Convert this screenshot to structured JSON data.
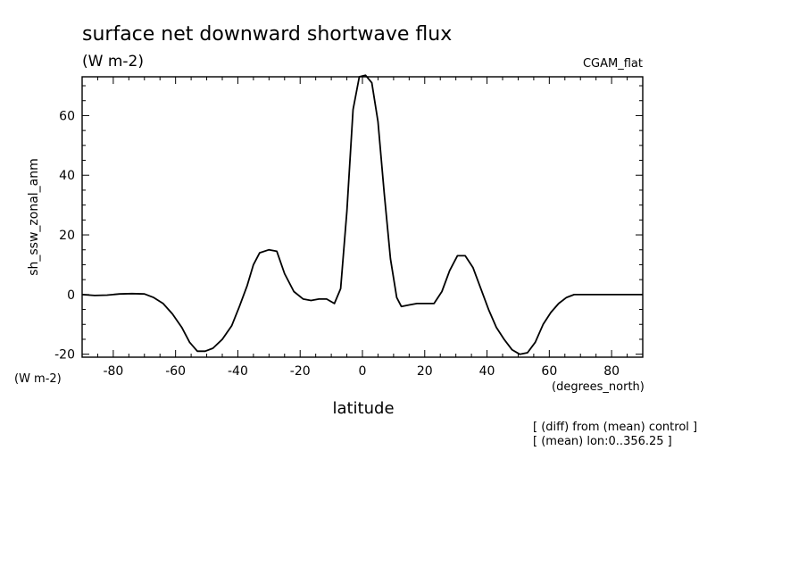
{
  "chart_data": {
    "type": "line",
    "title": "surface net downward shortwave flux",
    "units": "(W m-2)",
    "model": "CGAM_flat",
    "ylabel": "sh_ssw_zonal_anm",
    "yunits": "(W m-2)",
    "xlabel": "latitude",
    "xunits": "(degrees_north)",
    "notes": [
      "[ (diff) from (mean) control ]",
      "[ (mean) lon:0..356.25 ]"
    ],
    "xlim": [
      -90,
      90
    ],
    "ylim": [
      -21,
      73
    ],
    "xticks": [
      -80,
      -60,
      -40,
      -20,
      0,
      20,
      40,
      60,
      80
    ],
    "yticks": [
      -20,
      0,
      20,
      40,
      60
    ],
    "grid": false,
    "series": [
      {
        "x": [
          -90,
          -86,
          -82,
          -78,
          -74,
          -70,
          -67,
          -64,
          -61,
          -58,
          -55.5,
          -53,
          -50.5,
          -48,
          -45,
          -42,
          -39.5,
          -37,
          -35,
          -33,
          -30,
          -27.5,
          -25,
          -22,
          -19,
          -16.5,
          -14,
          -11.5,
          -9,
          -7,
          -5,
          -3,
          -1,
          1,
          3,
          5,
          7,
          9,
          11,
          12.5,
          15,
          17.5,
          20,
          23,
          25.5,
          28,
          30.5,
          33,
          35.5,
          38,
          40.5,
          43,
          45.5,
          48,
          50.5,
          53,
          55.5,
          58,
          60.5,
          63,
          65.5,
          68,
          70.5,
          74,
          78,
          82,
          86,
          90
        ],
        "y": [
          0,
          -0.3,
          -0.2,
          0.2,
          0.3,
          0.2,
          -1,
          -3,
          -6.5,
          -11,
          -16,
          -19,
          -19,
          -18,
          -15,
          -10.5,
          -4,
          3,
          10,
          14,
          15,
          14.5,
          7,
          1,
          -1.5,
          -2,
          -1.5,
          -1.5,
          -3,
          2,
          28,
          62,
          73,
          73.5,
          71,
          58,
          34,
          12,
          -1,
          -4,
          -3.5,
          -3,
          -3,
          -3,
          1,
          8,
          13,
          13,
          9,
          2,
          -5,
          -11,
          -15,
          -18.5,
          -20,
          -19.5,
          -16,
          -10,
          -6,
          -3,
          -1,
          0,
          0,
          0,
          0,
          0,
          0,
          0
        ]
      }
    ]
  }
}
